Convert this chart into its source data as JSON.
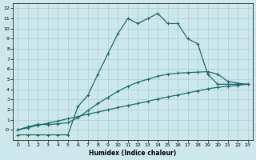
{
  "xlabel": "Humidex (Indice chaleur)",
  "bg_color": "#cde8ea",
  "grid_color": "#aecfd1",
  "line_color": "#1e6b6b",
  "xlim": [
    -0.5,
    23.5
  ],
  "ylim": [
    -1.0,
    12.5
  ],
  "xticks": [
    0,
    1,
    2,
    3,
    4,
    5,
    6,
    7,
    8,
    9,
    10,
    11,
    12,
    13,
    14,
    15,
    16,
    17,
    18,
    19,
    20,
    21,
    22,
    23
  ],
  "yticks": [
    0,
    1,
    2,
    3,
    4,
    5,
    6,
    7,
    8,
    9,
    10,
    11,
    12
  ],
  "line1_x": [
    0,
    1,
    2,
    3,
    4,
    5,
    6,
    7,
    8,
    9,
    10,
    11,
    12,
    13,
    14,
    15,
    16,
    17,
    18,
    19,
    20,
    21,
    22,
    23
  ],
  "line1_y": [
    0.0,
    0.2,
    0.45,
    0.65,
    0.87,
    1.1,
    1.3,
    1.55,
    1.75,
    1.97,
    2.2,
    2.4,
    2.6,
    2.82,
    3.05,
    3.25,
    3.45,
    3.65,
    3.85,
    4.05,
    4.2,
    4.3,
    4.4,
    4.5
  ],
  "line2_x": [
    0,
    1,
    2,
    3,
    4,
    5,
    6,
    7,
    8,
    9,
    10,
    11,
    12,
    13,
    14,
    15,
    16,
    17,
    18,
    19,
    20,
    21,
    22,
    23
  ],
  "line2_y": [
    0.0,
    0.3,
    0.55,
    0.5,
    0.6,
    0.7,
    1.2,
    1.9,
    2.6,
    3.2,
    3.8,
    4.3,
    4.7,
    5.0,
    5.3,
    5.5,
    5.6,
    5.65,
    5.7,
    5.75,
    5.5,
    4.8,
    4.6,
    4.5
  ],
  "line3_x": [
    0,
    1,
    2,
    3,
    4,
    5,
    6,
    7,
    8,
    9,
    10,
    11,
    12,
    13,
    14,
    15,
    16,
    17,
    18,
    19,
    20,
    21,
    22,
    23
  ],
  "line3_y": [
    -0.5,
    -0.5,
    -0.5,
    -0.5,
    -0.5,
    -0.5,
    2.3,
    3.4,
    5.5,
    7.5,
    9.5,
    11.0,
    10.5,
    11.0,
    11.5,
    10.5,
    10.5,
    9.0,
    8.5,
    5.5,
    4.5,
    4.5,
    4.5,
    4.5
  ]
}
